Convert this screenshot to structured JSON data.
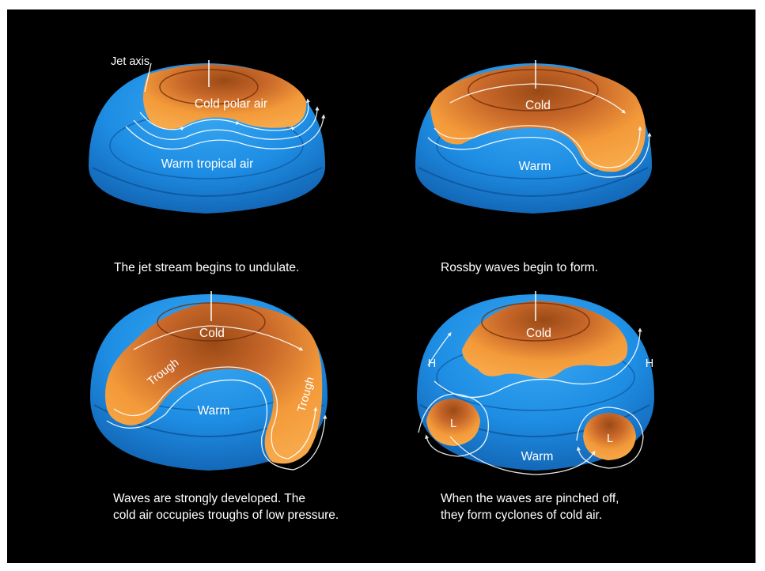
{
  "colors": {
    "background": "#000000",
    "tropical_blue": "#1e90e6",
    "polar_orange": "#f39a3a",
    "cold_core": "#9a4a16",
    "jet_arrow": "#ffffff",
    "text": "#ffffff"
  },
  "panels": [
    {
      "id": "undulate",
      "labels": {
        "jet_axis": "Jet axis",
        "cold": "Cold polar air",
        "warm": "Warm tropical air"
      },
      "caption": "The jet stream begins to undulate."
    },
    {
      "id": "rossby",
      "labels": {
        "cold": "Cold",
        "warm": "Warm"
      },
      "caption": "Rossby waves begin to form."
    },
    {
      "id": "troughs",
      "labels": {
        "cold": "Cold",
        "warm": "Warm",
        "trough_left": "Trough",
        "trough_right": "Trough"
      },
      "caption": "Waves are strongly developed.  The\ncold air occupies troughs of low pressure."
    },
    {
      "id": "cyclones",
      "labels": {
        "cold": "Cold",
        "warm": "Warm",
        "high_left": "H",
        "high_right": "H",
        "low_left": "L",
        "low_right": "L"
      },
      "caption": "When the waves are pinched off,\nthey form cyclones of cold air."
    }
  ]
}
